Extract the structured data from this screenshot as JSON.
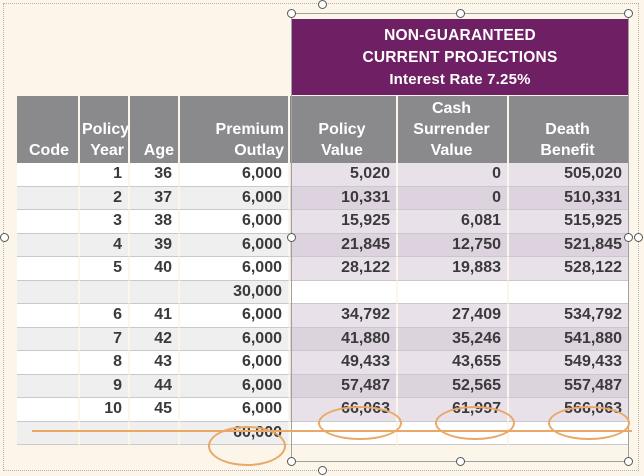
{
  "banner": {
    "line1": "NON-GUARANTEED",
    "line2": "CURRENT PROJECTIONS",
    "line3": "Interest Rate 7.25%"
  },
  "headers": {
    "code": "Code",
    "policy_year": [
      "Policy",
      "Year"
    ],
    "age": "Age",
    "premium_outlay": [
      "Premium",
      "Outlay"
    ],
    "policy_value": [
      "Policy",
      "Value"
    ],
    "cash_surrender_value": [
      "Cash",
      "Surrender",
      "Value"
    ],
    "death_benefit": [
      "Death",
      "Benefit"
    ]
  },
  "rows": [
    {
      "code": "",
      "year": "1",
      "age": "36",
      "premium": "6,000",
      "policy_value": "5,020",
      "csv": "0",
      "death": "505,020"
    },
    {
      "code": "",
      "year": "2",
      "age": "37",
      "premium": "6,000",
      "policy_value": "10,331",
      "csv": "0",
      "death": "510,331"
    },
    {
      "code": "",
      "year": "3",
      "age": "38",
      "premium": "6,000",
      "policy_value": "15,925",
      "csv": "6,081",
      "death": "515,925"
    },
    {
      "code": "",
      "year": "4",
      "age": "39",
      "premium": "6,000",
      "policy_value": "21,845",
      "csv": "12,750",
      "death": "521,845"
    },
    {
      "code": "",
      "year": "5",
      "age": "40",
      "premium": "6,000",
      "policy_value": "28,122",
      "csv": "19,883",
      "death": "528,122"
    },
    {
      "code": "",
      "year": "",
      "age": "",
      "premium": "30,000",
      "policy_value": "",
      "csv": "",
      "death": ""
    },
    {
      "code": "",
      "year": "6",
      "age": "41",
      "premium": "6,000",
      "policy_value": "34,792",
      "csv": "27,409",
      "death": "534,792"
    },
    {
      "code": "",
      "year": "7",
      "age": "42",
      "premium": "6,000",
      "policy_value": "41,880",
      "csv": "35,246",
      "death": "541,880"
    },
    {
      "code": "",
      "year": "8",
      "age": "43",
      "premium": "6,000",
      "policy_value": "49,433",
      "csv": "43,655",
      "death": "549,433"
    },
    {
      "code": "",
      "year": "9",
      "age": "44",
      "premium": "6,000",
      "policy_value": "57,487",
      "csv": "52,565",
      "death": "557,487"
    },
    {
      "code": "",
      "year": "10",
      "age": "45",
      "premium": "6,000",
      "policy_value": "66,063",
      "csv": "61,997",
      "death": "566,063"
    },
    {
      "code": "",
      "year": "",
      "age": "",
      "premium": "60,000",
      "policy_value": "",
      "csv": "",
      "death": ""
    }
  ],
  "colors": {
    "banner": "#6f1f63",
    "header": "#8a8a8c",
    "projection_tint": "#e9e1ea",
    "annotation": "#e9a866"
  }
}
